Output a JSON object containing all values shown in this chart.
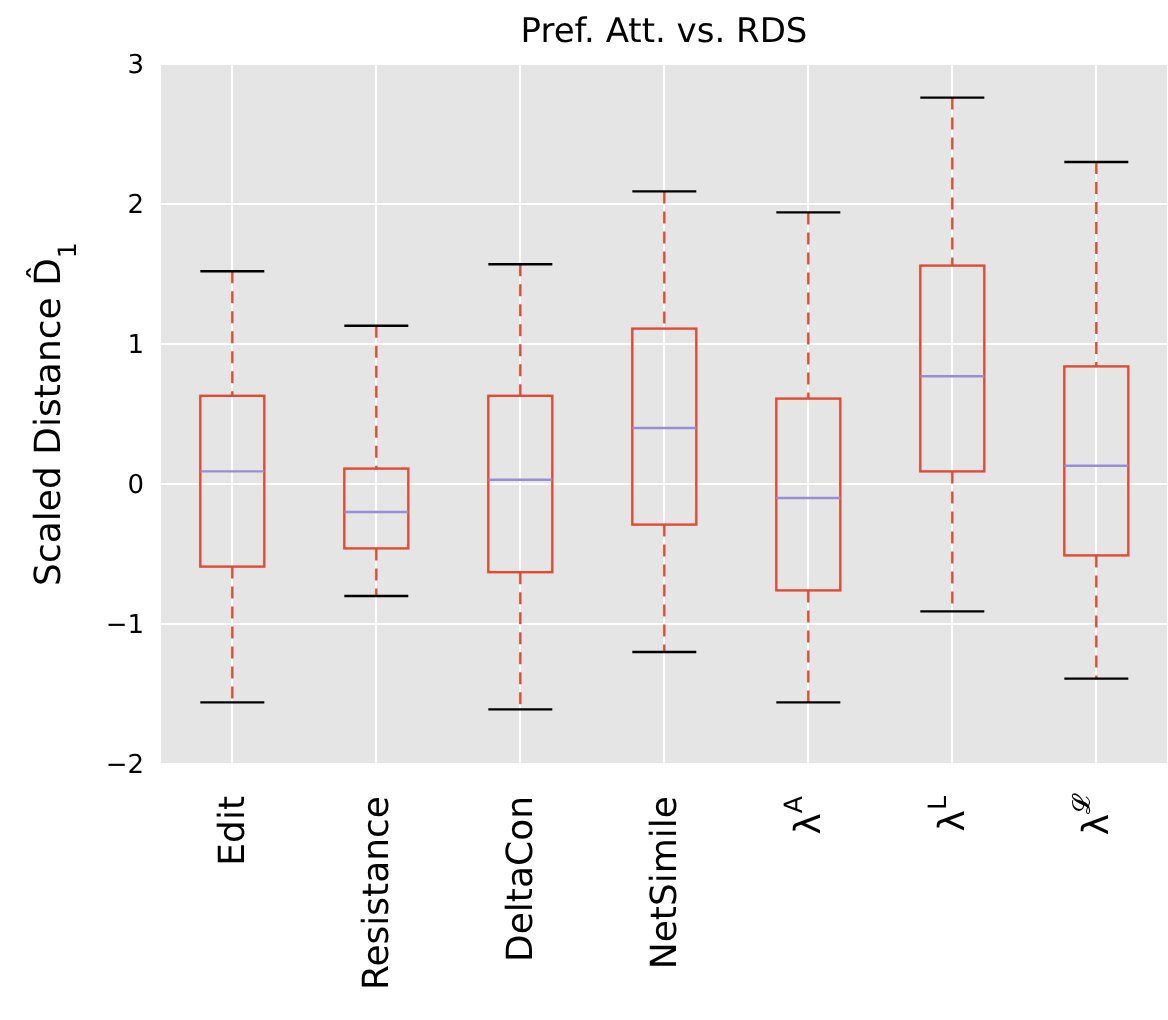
{
  "chart_data": {
    "type": "box",
    "title": "Pref. Att. vs. RDS",
    "ylabel": "Scaled Distance D̂$_{1}$",
    "categories": [
      "Edit",
      "Resistance",
      "DeltaCon",
      "NetSimile",
      "λ$^{A}$",
      "λ$^{L}$",
      "λ$^{𝓛}$"
    ],
    "color": "#e24a33",
    "boxes": [
      {
        "low": -1.56,
        "q1": -0.59,
        "median": 0.09,
        "q3": 0.63,
        "high": 1.52
      },
      {
        "low": -0.8,
        "q1": -0.46,
        "median": -0.2,
        "q3": 0.11,
        "high": 1.13
      },
      {
        "low": -1.61,
        "q1": -0.63,
        "median": 0.03,
        "q3": 0.63,
        "high": 1.57
      },
      {
        "low": -1.2,
        "q1": -0.29,
        "median": 0.4,
        "q3": 1.11,
        "high": 2.09
      },
      {
        "low": -1.56,
        "q1": -0.76,
        "median": -0.1,
        "q3": 0.61,
        "high": 1.94
      },
      {
        "low": -0.91,
        "q1": 0.09,
        "median": 0.77,
        "q3": 1.56,
        "high": 2.76
      },
      {
        "low": -1.39,
        "q1": -0.51,
        "median": 0.13,
        "q3": 0.84,
        "high": 2.3
      }
    ],
    "ylim": [
      -2,
      3
    ],
    "yticks": [
      -2,
      -1,
      0,
      1,
      2,
      3
    ],
    "grid": true
  }
}
